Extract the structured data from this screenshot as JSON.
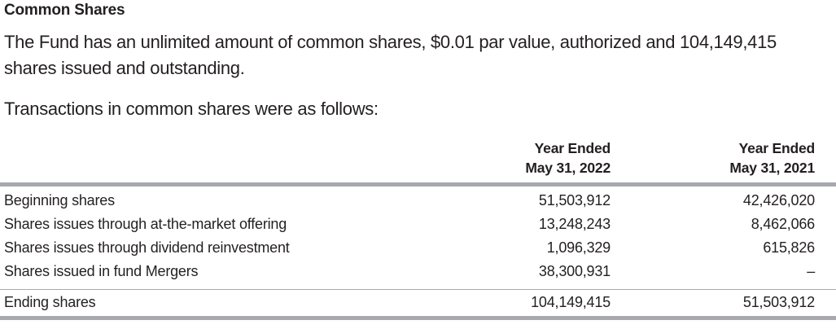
{
  "section": {
    "title": "Common Shares",
    "paragraph": "The Fund has an unlimited amount of common shares, $0.01 par value, authorized and 104,149,415 shares issued and outstanding.",
    "intro": "Transactions in common shares were as follows:"
  },
  "table": {
    "columns": [
      {
        "line1": "Year Ended",
        "line2": "May 31, 2022"
      },
      {
        "line1": "Year Ended",
        "line2": "May 31, 2021"
      }
    ],
    "rows": [
      {
        "label": "Beginning shares",
        "values": [
          "51,503,912",
          "42,426,020"
        ]
      },
      {
        "label": "Shares issues through at-the-market offering",
        "values": [
          "13,248,243",
          "8,462,066"
        ]
      },
      {
        "label": "Shares issues through dividend reinvestment",
        "values": [
          "1,096,329",
          "615,826"
        ]
      },
      {
        "label": "Shares issued in fund Mergers",
        "values": [
          "38,300,931",
          "–"
        ]
      }
    ],
    "total": {
      "label": "Ending shares",
      "values": [
        "104,149,415",
        "51,503,912"
      ]
    }
  }
}
